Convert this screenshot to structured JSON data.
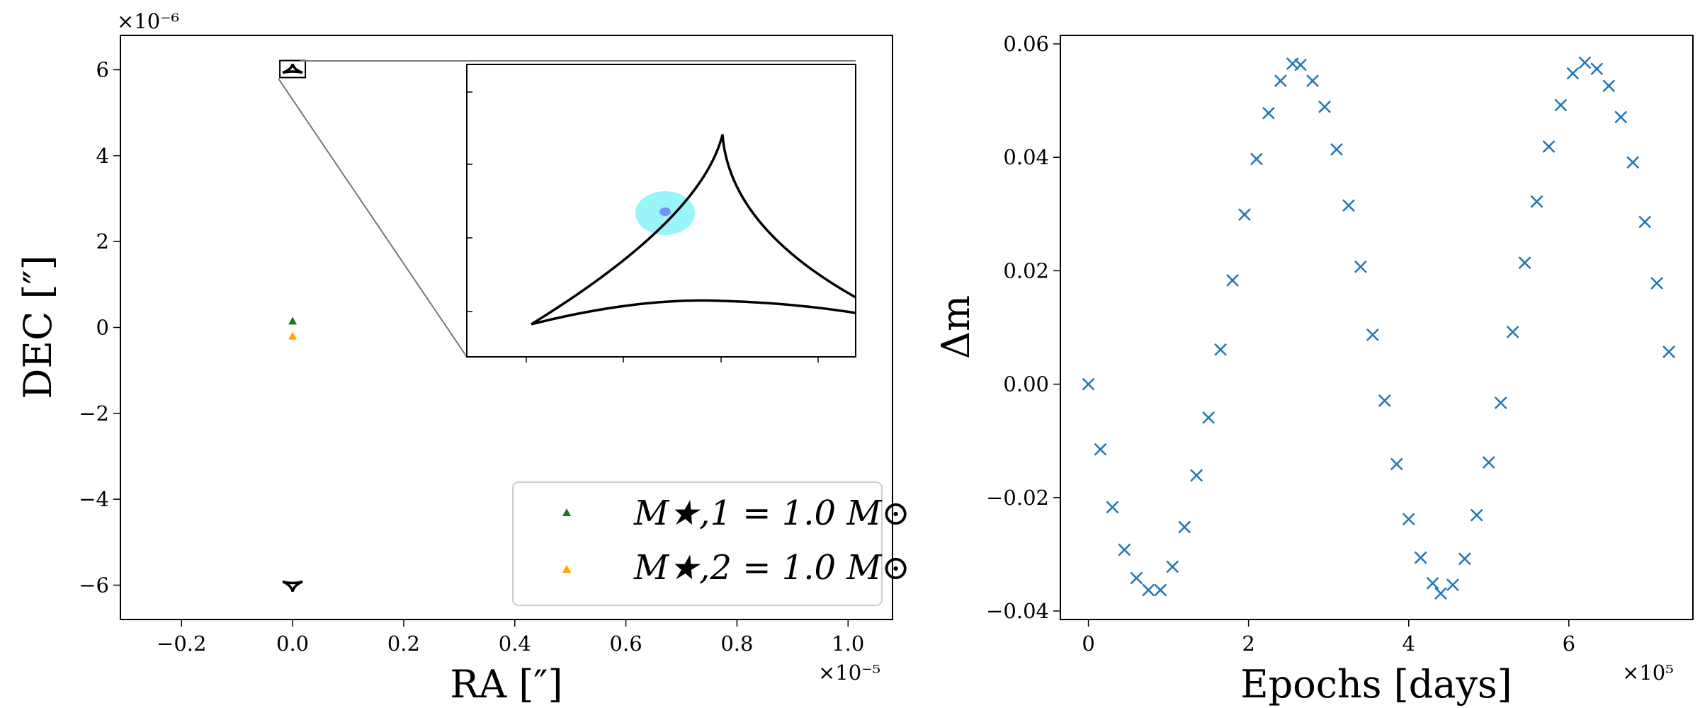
{
  "chart_data": [
    {
      "type": "scatter",
      "xlabel": "RA [″]",
      "ylabel": "DEC [″]",
      "xlim": [
        -3.1e-06,
        1.08e-05
      ],
      "ylim": [
        -6.8e-06,
        6.8e-06
      ],
      "x_ticks": [
        -0.2,
        0.0,
        0.2,
        0.4,
        0.6,
        0.8,
        1.0
      ],
      "x_tick_labels": [
        "−0.2",
        "0.0",
        "0.2",
        "0.4",
        "0.6",
        "0.8",
        "1.0"
      ],
      "x_offset_label": "×10⁻⁵",
      "y_ticks": [
        -6,
        -4,
        -2,
        0,
        2,
        4,
        6
      ],
      "y_tick_labels": [
        "−6",
        "−4",
        "−2",
        "0",
        "2",
        "4",
        "6"
      ],
      "y_offset_label": "×10⁻⁶",
      "series": [
        {
          "name": "M★,1 = 1.0 M⊙",
          "marker": "triangle",
          "color": "#1a7a1a",
          "x": [
            0.0
          ],
          "y": [
            1e-07
          ]
        },
        {
          "name": "M★,2 = 1.0 M⊙",
          "marker": "triangle",
          "color": "#ffa500",
          "x": [
            0.0
          ],
          "y": [
            -1e-07
          ]
        }
      ],
      "caustics": [
        {
          "name": "upper caustic",
          "center": [
            0.0,
            6e-06
          ]
        },
        {
          "name": "lower caustic",
          "center": [
            0.0,
            -6e-06
          ]
        }
      ],
      "inset": {
        "zoom_region": "upper caustic",
        "source_colors": [
          "#00e5ee",
          "#6666ff"
        ]
      },
      "legend": {
        "location": "lower-right",
        "entries": [
          "M★,1 = 1.0 M⊙",
          "M★,2 = 1.0 M⊙"
        ]
      }
    },
    {
      "type": "scatter",
      "xlabel": "Epochs [days]",
      "ylabel": "Δm",
      "x_offset_label": "×10⁵",
      "xlim": [
        -0.35,
        7.55
      ],
      "ylim": [
        -0.0415,
        0.0615
      ],
      "x_ticks": [
        0,
        2,
        4,
        6
      ],
      "x_tick_labels": [
        "0",
        "2",
        "4",
        "6"
      ],
      "y_ticks": [
        -0.04,
        -0.02,
        0.0,
        0.02,
        0.04,
        0.06
      ],
      "y_tick_labels": [
        "−0.04",
        "−0.02",
        "0.00",
        "0.02",
        "0.04",
        "0.06"
      ],
      "marker": "x",
      "color": "#1f77b4",
      "x": [
        0.0,
        0.15,
        0.3,
        0.45,
        0.6,
        0.75,
        0.9,
        1.05,
        1.2,
        1.35,
        1.5,
        1.65,
        1.8,
        1.95,
        2.1,
        2.25,
        2.4,
        2.55,
        2.65,
        2.8,
        2.95,
        3.1,
        3.25,
        3.4,
        3.55,
        3.7,
        3.85,
        4.0,
        4.15,
        4.3,
        4.4,
        4.55,
        4.7,
        4.85,
        5.0,
        5.15,
        5.3,
        5.45,
        5.6,
        5.75,
        5.9,
        6.05,
        6.2,
        6.35,
        6.5,
        6.65,
        6.8,
        6.95,
        7.1,
        7.25
      ],
      "y": [
        0.0,
        -0.0115,
        -0.0217,
        -0.0292,
        -0.0342,
        -0.0363,
        -0.0363,
        -0.0322,
        -0.0252,
        -0.0161,
        -0.0059,
        0.0061,
        0.0183,
        0.0299,
        0.0397,
        0.0478,
        0.0535,
        0.0565,
        0.0563,
        0.0535,
        0.0489,
        0.0414,
        0.0315,
        0.0207,
        0.0087,
        -0.0029,
        -0.0141,
        -0.0238,
        -0.0306,
        -0.0351,
        -0.0369,
        -0.0354,
        -0.0308,
        -0.0231,
        -0.0138,
        -0.0033,
        0.0092,
        0.0214,
        0.0322,
        0.0419,
        0.0492,
        0.0548,
        0.0567,
        0.0556,
        0.0526,
        0.0471,
        0.0391,
        0.0286,
        0.0178,
        0.0057
      ]
    }
  ]
}
